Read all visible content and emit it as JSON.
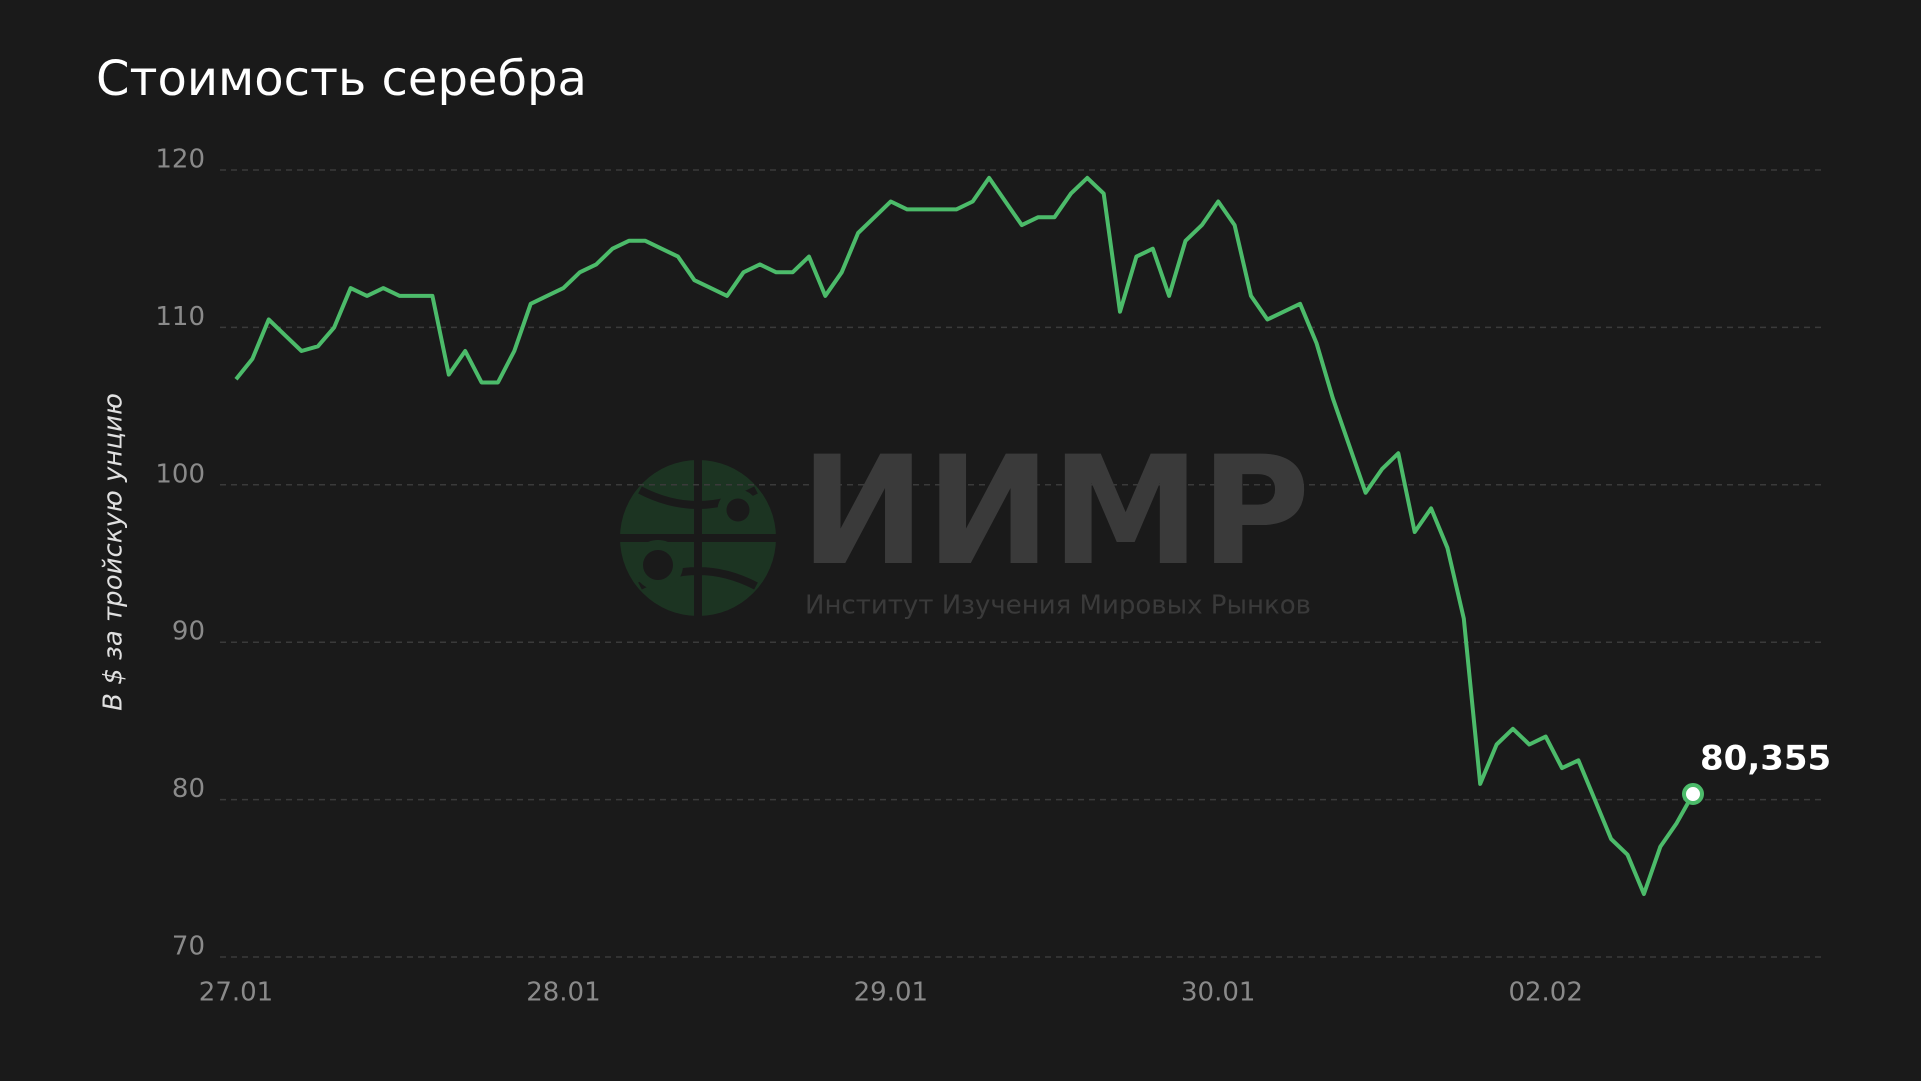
{
  "chart_data": {
    "type": "line",
    "title": "Стоимость серебра",
    "y_label": "В $ за тройскую унцию",
    "watermark": {
      "logo": "ИИМР",
      "caption": "Институт Изучения Мировых Рынков"
    },
    "categories": [
      "27.01",
      null,
      null,
      null,
      null,
      null,
      null,
      null,
      null,
      null,
      null,
      null,
      null,
      null,
      null,
      null,
      null,
      null,
      null,
      null,
      "28.01",
      null,
      null,
      null,
      null,
      null,
      null,
      null,
      null,
      null,
      null,
      null,
      null,
      null,
      null,
      null,
      null,
      null,
      null,
      null,
      "29.01",
      null,
      null,
      null,
      null,
      null,
      null,
      null,
      null,
      null,
      null,
      null,
      null,
      null,
      null,
      null,
      null,
      null,
      null,
      null,
      "30.01",
      null,
      null,
      null,
      null,
      null,
      null,
      null,
      null,
      null,
      null,
      null,
      null,
      null,
      null,
      null,
      null,
      null,
      null,
      null,
      "02.02",
      null,
      null,
      null,
      null,
      null,
      null,
      null,
      null,
      null
    ],
    "series": [
      {
        "color": "#4cbb6a",
        "values": [
          106.7,
          108,
          110.5,
          109.5,
          108.5,
          108.8,
          110,
          112.5,
          112,
          112.5,
          112,
          112,
          112,
          107,
          108.5,
          106.5,
          106.5,
          108.5,
          111.5,
          112,
          112.5,
          113.5,
          114,
          115,
          115.5,
          115.5,
          115,
          114.5,
          113,
          112.5,
          112,
          113.5,
          114,
          113.5,
          113.5,
          114.5,
          112,
          113.5,
          116,
          117,
          118,
          117.5,
          117.5,
          117.5,
          117.5,
          118,
          119.5,
          118,
          116.5,
          117,
          117,
          118.5,
          119.5,
          118.5,
          111,
          114.5,
          115,
          112,
          115.5,
          116.5,
          118,
          116.5,
          112,
          110.5,
          111,
          111.5,
          109,
          105.5,
          102.5,
          99.5,
          101,
          102,
          97,
          98.5,
          96,
          91.5,
          81,
          83.5,
          84.5,
          83.5,
          84,
          82,
          82.5,
          80,
          77.5,
          76.5,
          74,
          77,
          78.5,
          80.355
        ],
        "value_labels": [
          null,
          null,
          null,
          null,
          null,
          null,
          null,
          null,
          null,
          null,
          null,
          null,
          null,
          null,
          null,
          null,
          null,
          null,
          null,
          null,
          null,
          null,
          null,
          null,
          null,
          null,
          null,
          null,
          null,
          null,
          null,
          null,
          null,
          null,
          null,
          null,
          null,
          null,
          null,
          null,
          null,
          null,
          null,
          null,
          null,
          null,
          null,
          null,
          null,
          null,
          null,
          null,
          null,
          null,
          null,
          null,
          null,
          null,
          null,
          null,
          null,
          null,
          null,
          null,
          null,
          null,
          null,
          null,
          null,
          null,
          null,
          null,
          null,
          null,
          null,
          null,
          null,
          null,
          null,
          null,
          null,
          null,
          null,
          null,
          null,
          null,
          null,
          null,
          null,
          "80,355"
        ]
      }
    ],
    "ylim": [
      70,
      120
    ],
    "yticks": [
      70,
      80,
      90,
      100,
      110,
      120
    ],
    "grid": true
  }
}
